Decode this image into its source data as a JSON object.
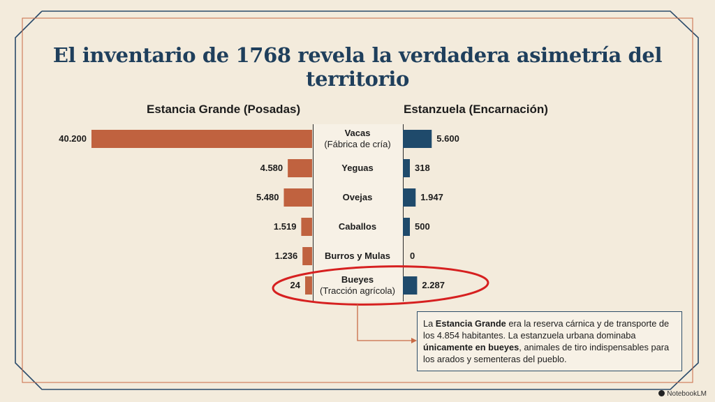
{
  "title": "El inventario de 1768 revela la verdadera asimetría del territorio",
  "chart_data": {
    "type": "bar",
    "orientation": "horizontal-back-to-back",
    "categories": [
      {
        "label": "Vacas",
        "sublabel": "(Fábrica de cría)"
      },
      {
        "label": "Yeguas",
        "sublabel": ""
      },
      {
        "label": "Ovejas",
        "sublabel": ""
      },
      {
        "label": "Caballos",
        "sublabel": ""
      },
      {
        "label": "Burros y Mulas",
        "sublabel": ""
      },
      {
        "label": "Bueyes",
        "sublabel": "(Tracción agrícola)"
      }
    ],
    "series": [
      {
        "name": "Estancia Grande (Posadas)",
        "values": [
          40200,
          4580,
          5480,
          1519,
          1236,
          24
        ],
        "labels": [
          "40.200",
          "4.580",
          "5.480",
          "1.519",
          "1.236",
          "24"
        ],
        "color": "#c0623f"
      },
      {
        "name": "Estanzuela (Encarnación)",
        "values": [
          5600,
          318,
          1947,
          500,
          0,
          2287
        ],
        "labels": [
          "5.600",
          "318",
          "1.947",
          "500",
          "0",
          "2.287"
        ],
        "color": "#1f4a6b"
      }
    ],
    "highlight": "Bueyes"
  },
  "note": {
    "p1": "La ",
    "b1": "Estancia Grande",
    "p2": " era la reserva cárnica y de transporte de los 4.854 habitantes. La estanzuela urbana dominaba ",
    "b2": "únicamente en bueyes",
    "p3": ", animales de tiro indispensables para los arados y sementeras del pueblo."
  },
  "brand": "NotebookLM",
  "colors": {
    "accent_red": "#d62020",
    "frame_blue": "#2a4a6a",
    "frame_orange": "#c86a45"
  }
}
